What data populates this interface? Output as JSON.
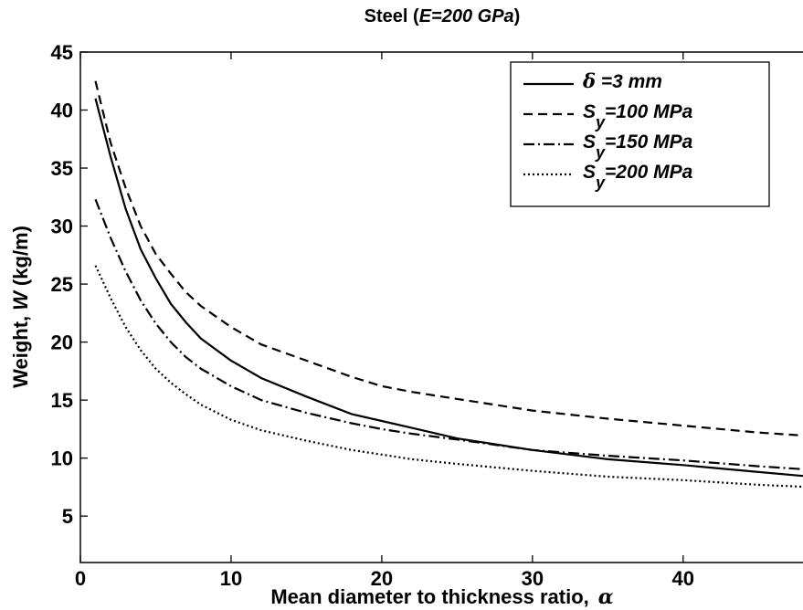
{
  "chart_data": {
    "type": "line",
    "title_prefix": "Steel (",
    "title_italic": "E=200 GPa",
    "title_suffix": ")",
    "xlabel_text": "Mean diameter to thickness ratio,",
    "xlabel_symbol": "α",
    "ylabel_text": "Weight,",
    "ylabel_symbol": "W",
    "ylabel_unit": "(kg/m)",
    "xlim": [
      0,
      48.5
    ],
    "ylim": [
      1,
      45
    ],
    "xticks": [
      0,
      10,
      20,
      30,
      40
    ],
    "yticks": [
      5,
      10,
      15,
      20,
      25,
      30,
      35,
      40,
      45
    ],
    "grid": false,
    "legend_position": "top-right",
    "x": [
      1,
      2,
      3,
      4,
      5,
      6,
      7,
      8,
      10,
      12,
      15,
      18,
      20,
      22,
      25,
      30,
      35,
      40,
      45,
      48.5
    ],
    "series": [
      {
        "label_main": "δ",
        "label_sub": "",
        "label_rest": " =3 mm",
        "dash": "",
        "values": [
          41.0,
          36.0,
          31.5,
          28.0,
          25.5,
          23.3,
          21.7,
          20.3,
          18.4,
          16.9,
          15.3,
          13.8,
          13.2,
          12.6,
          11.7,
          10.7,
          9.9,
          9.4,
          8.8,
          8.4
        ]
      },
      {
        "label_main": "S",
        "label_sub": "y",
        "label_rest": "=100 MPa",
        "dash": "10,6",
        "values": [
          42.5,
          37.2,
          33.3,
          30.0,
          27.6,
          25.9,
          24.3,
          23.1,
          21.3,
          19.8,
          18.4,
          17.0,
          16.2,
          15.7,
          15.1,
          14.1,
          13.4,
          12.8,
          12.2,
          11.9
        ]
      },
      {
        "label_main": "S",
        "label_sub": "y",
        "label_rest": "=150 MPa",
        "dash": "12,4,2,4",
        "values": [
          32.3,
          29.0,
          26.1,
          23.6,
          21.6,
          20.0,
          18.7,
          17.7,
          16.2,
          15.0,
          13.9,
          13.0,
          12.5,
          12.1,
          11.6,
          10.7,
          10.2,
          9.8,
          9.3,
          9.0
        ]
      },
      {
        "label_main": "S",
        "label_sub": "y",
        "label_rest": "=200 MPa",
        "dash": "2,3",
        "values": [
          26.6,
          23.8,
          21.3,
          19.3,
          17.7,
          16.5,
          15.5,
          14.6,
          13.3,
          12.4,
          11.5,
          10.7,
          10.3,
          9.9,
          9.5,
          8.9,
          8.4,
          8.1,
          7.7,
          7.5
        ]
      }
    ]
  }
}
